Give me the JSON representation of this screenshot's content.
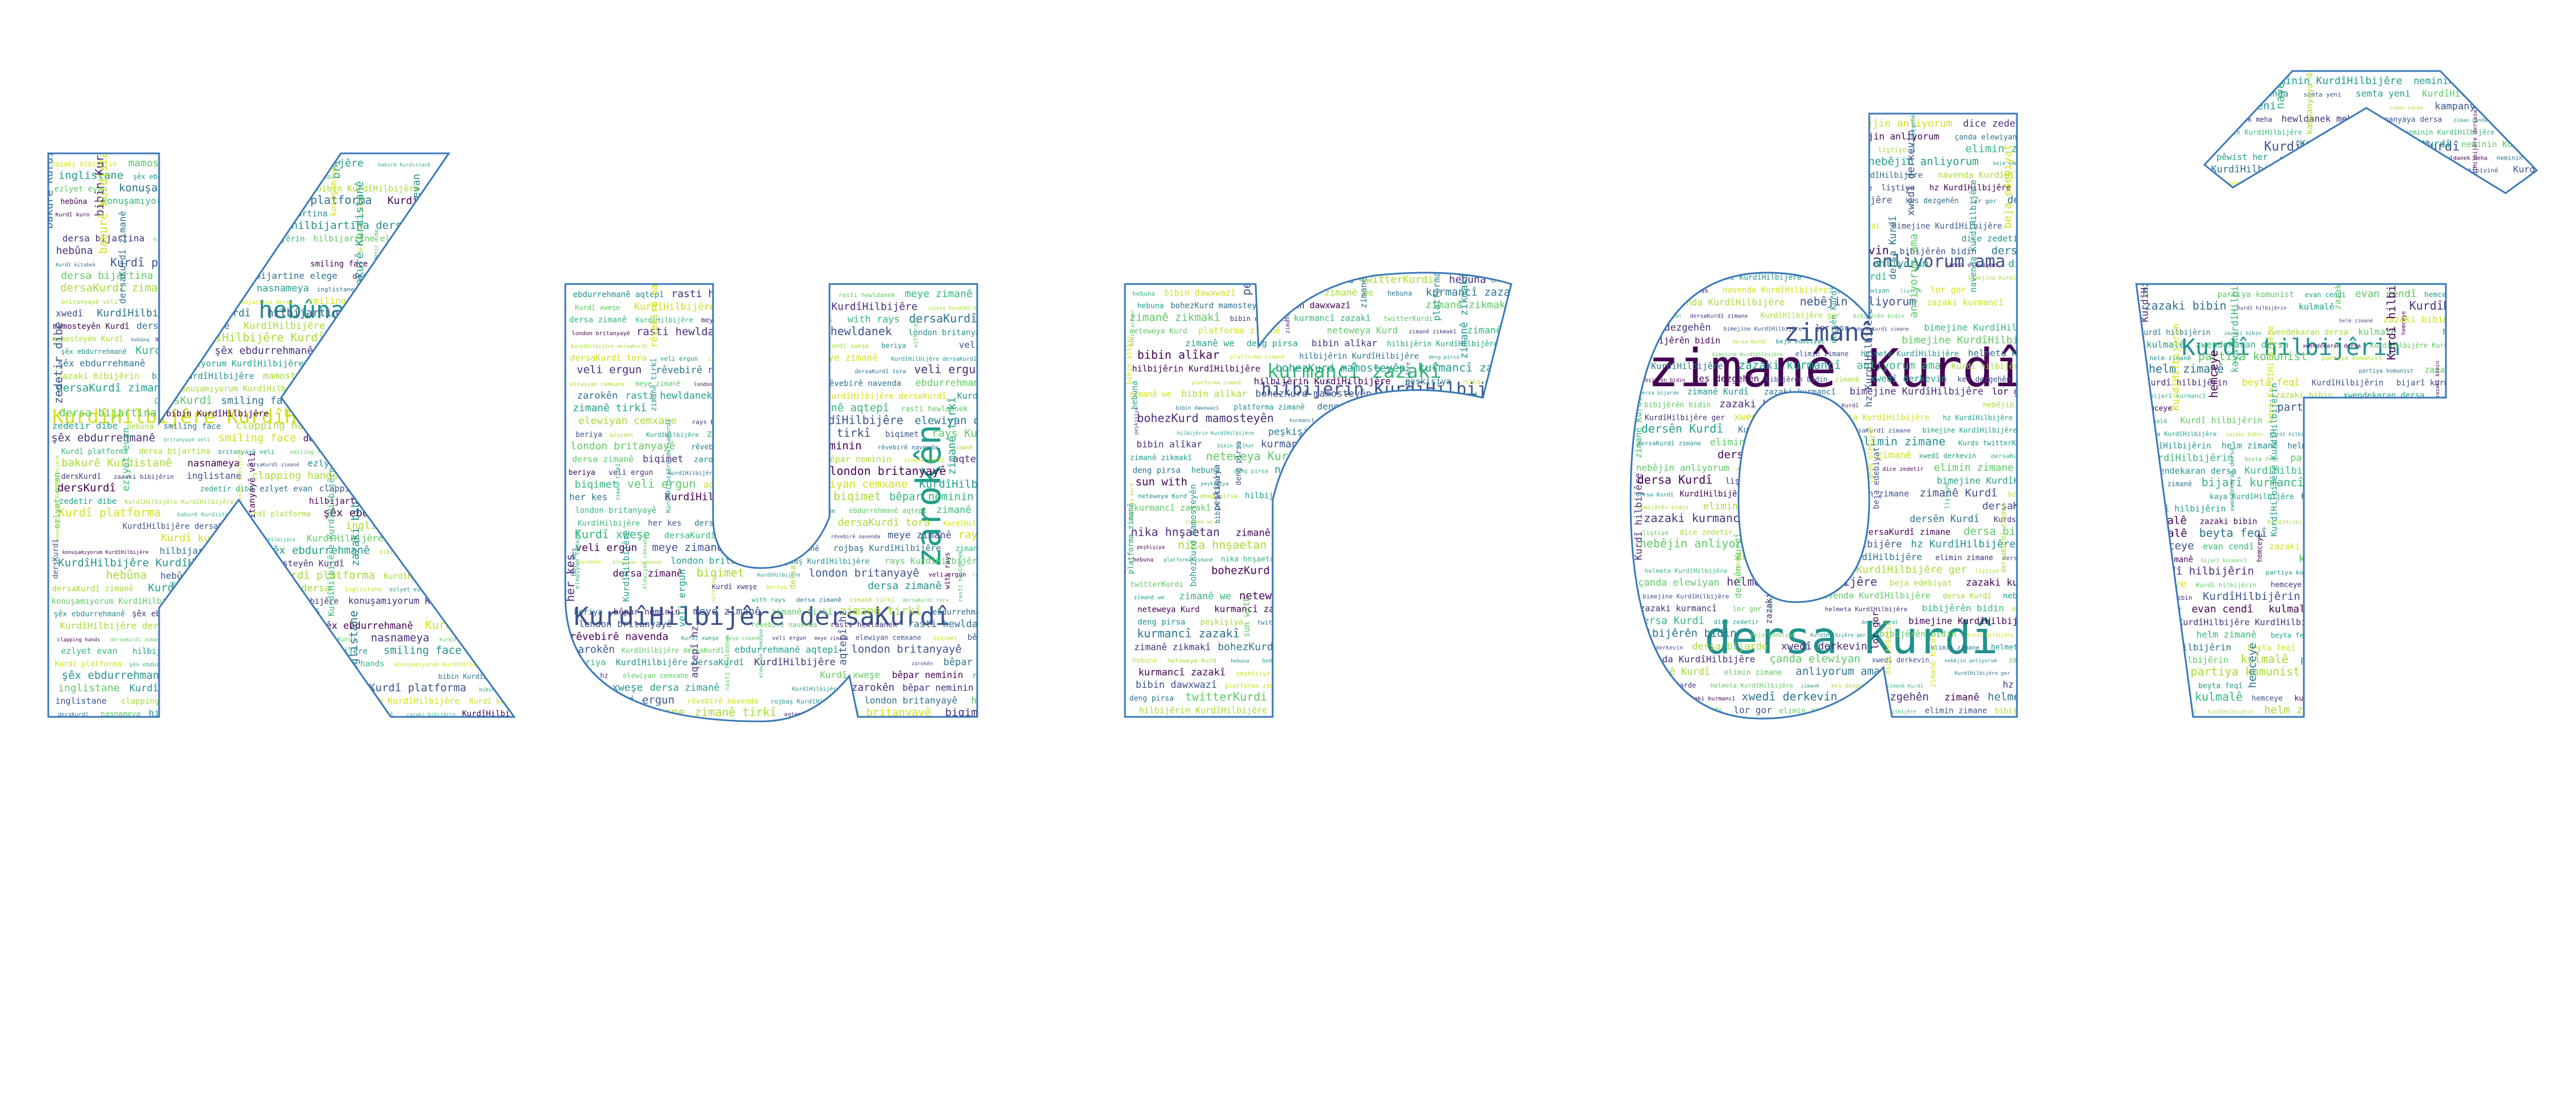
{
  "palette": {
    "background": "#ffffff",
    "outline": "#3a78b8",
    "colors": [
      "#440154",
      "#3b528b",
      "#21918c",
      "#1f9e89",
      "#35b779",
      "#5ec962",
      "#a8db34",
      "#d0e11c",
      "#2c728e",
      "#472d7b"
    ]
  },
  "shape_text": "Kurdî",
  "words": {
    "K": [
      "KurdîHilbijêre KurdîHilbijêre",
      "hebûna",
      "dersaKurdî zimanê",
      "Kurdî platforma",
      "britanyayê veli",
      "konuşamıyorum KurdîHilbijêre",
      "nasnameya",
      "zedetir dibe",
      "mamosteyên Kurdî",
      "ezlyet evan",
      "Kurdî kitabek",
      "clapping hands",
      "KurdîHilbijêre dersaKurdî",
      "smiling face",
      "inglistane",
      "bibin KurdîHilbijêre",
      "hilbijartine elege",
      "bakurê Kurdistanê",
      "hilbijartina dersa",
      "xwedî",
      "şêx ebdurrehmanê",
      "dersKurdî",
      "Kurdî kuro",
      "zazaki bibijêrin",
      "dersa bijartina"
    ],
    "u1": [
      "KurdîHilbijêre dersaKurdî",
      "zarokên",
      "with rays",
      "veli ergun",
      "meye zimanê",
      "Kurdî xweşe",
      "ebdurrehmanê aqtepî",
      "rojbaş KurdîHilbijêre",
      "rays KurdîHilbijêre",
      "london britanyayê",
      "elewiyan cemxane",
      "aqtepî hz",
      "bêpar neminin",
      "beriya",
      "biqimet",
      "rêvebirê navenda",
      "dersaKurdî tora",
      "KurdîHilbijêre",
      "zimanê tirkî",
      "dersa zimanê",
      "her kes",
      "rasti hewldanek"
    ],
    "r": [
      "kurmancî zazakî",
      "hilbijêrin KurdîHilbijêre",
      "platforma zimanê",
      "sun with",
      "deng pirsa",
      "zimanê zikmakî",
      "bibin alîkar",
      "neteweya Kurd",
      "bohezKurd mamosteyên",
      "peşkişiya",
      "hebuna",
      "zimanê we",
      "twitterKurdi",
      "bibin dawxwazî",
      "nika hnşaetan"
    ],
    "d": [
      "zimanê Kurdî",
      "dersa Kurdî",
      "zimanê",
      "anliyorum ama",
      "dersa bijarde",
      "Kurdî hilbijêre",
      "elimin zimane",
      "kes dezgehên",
      "zazaki kurmancî",
      "xwedî derkevin",
      "bibijêrên bidin",
      "nebêjin anliyorum",
      "KurdîHilbijêre ger",
      "dersên Kurdî",
      "Kurds twitterKurds",
      "hz KurdîHilbijêre",
      "navenda KurdîHilbijêre",
      "dice zedetir",
      "lor gor",
      "liştiye",
      "çanda elewiyan",
      "beja edebiyat",
      "dersaKurdî zimane",
      "bimejine KurdîHilbijêre",
      "helmeta KurdîHilbijêre"
    ],
    "i": [
      "Kurdî hilbijêrin",
      "KurdîHilbijêre KurdîHilbijêrin",
      "xwendekaran dersa",
      "bijarî kurmancî",
      "kaya KurdîHilbijêre",
      "KurdîHilbijêrin",
      "partiya komunist",
      "helm zimanê",
      "beyta feqî",
      "hemceye",
      "zazaki bibin",
      "kulmalê",
      "evan cendî"
    ],
    "dot": [
      "KurdîHilbijêrin dersaKurdî",
      "navenda çanda",
      "neminin KurdîHilbijêre",
      "KurdîHilbijêre dersazazakîbivinê",
      "ziman çanda",
      "hewldanek meha",
      "kampanyaya dersa",
      "semta yeni",
      "pêwist her",
      "kurmancî"
    ]
  }
}
